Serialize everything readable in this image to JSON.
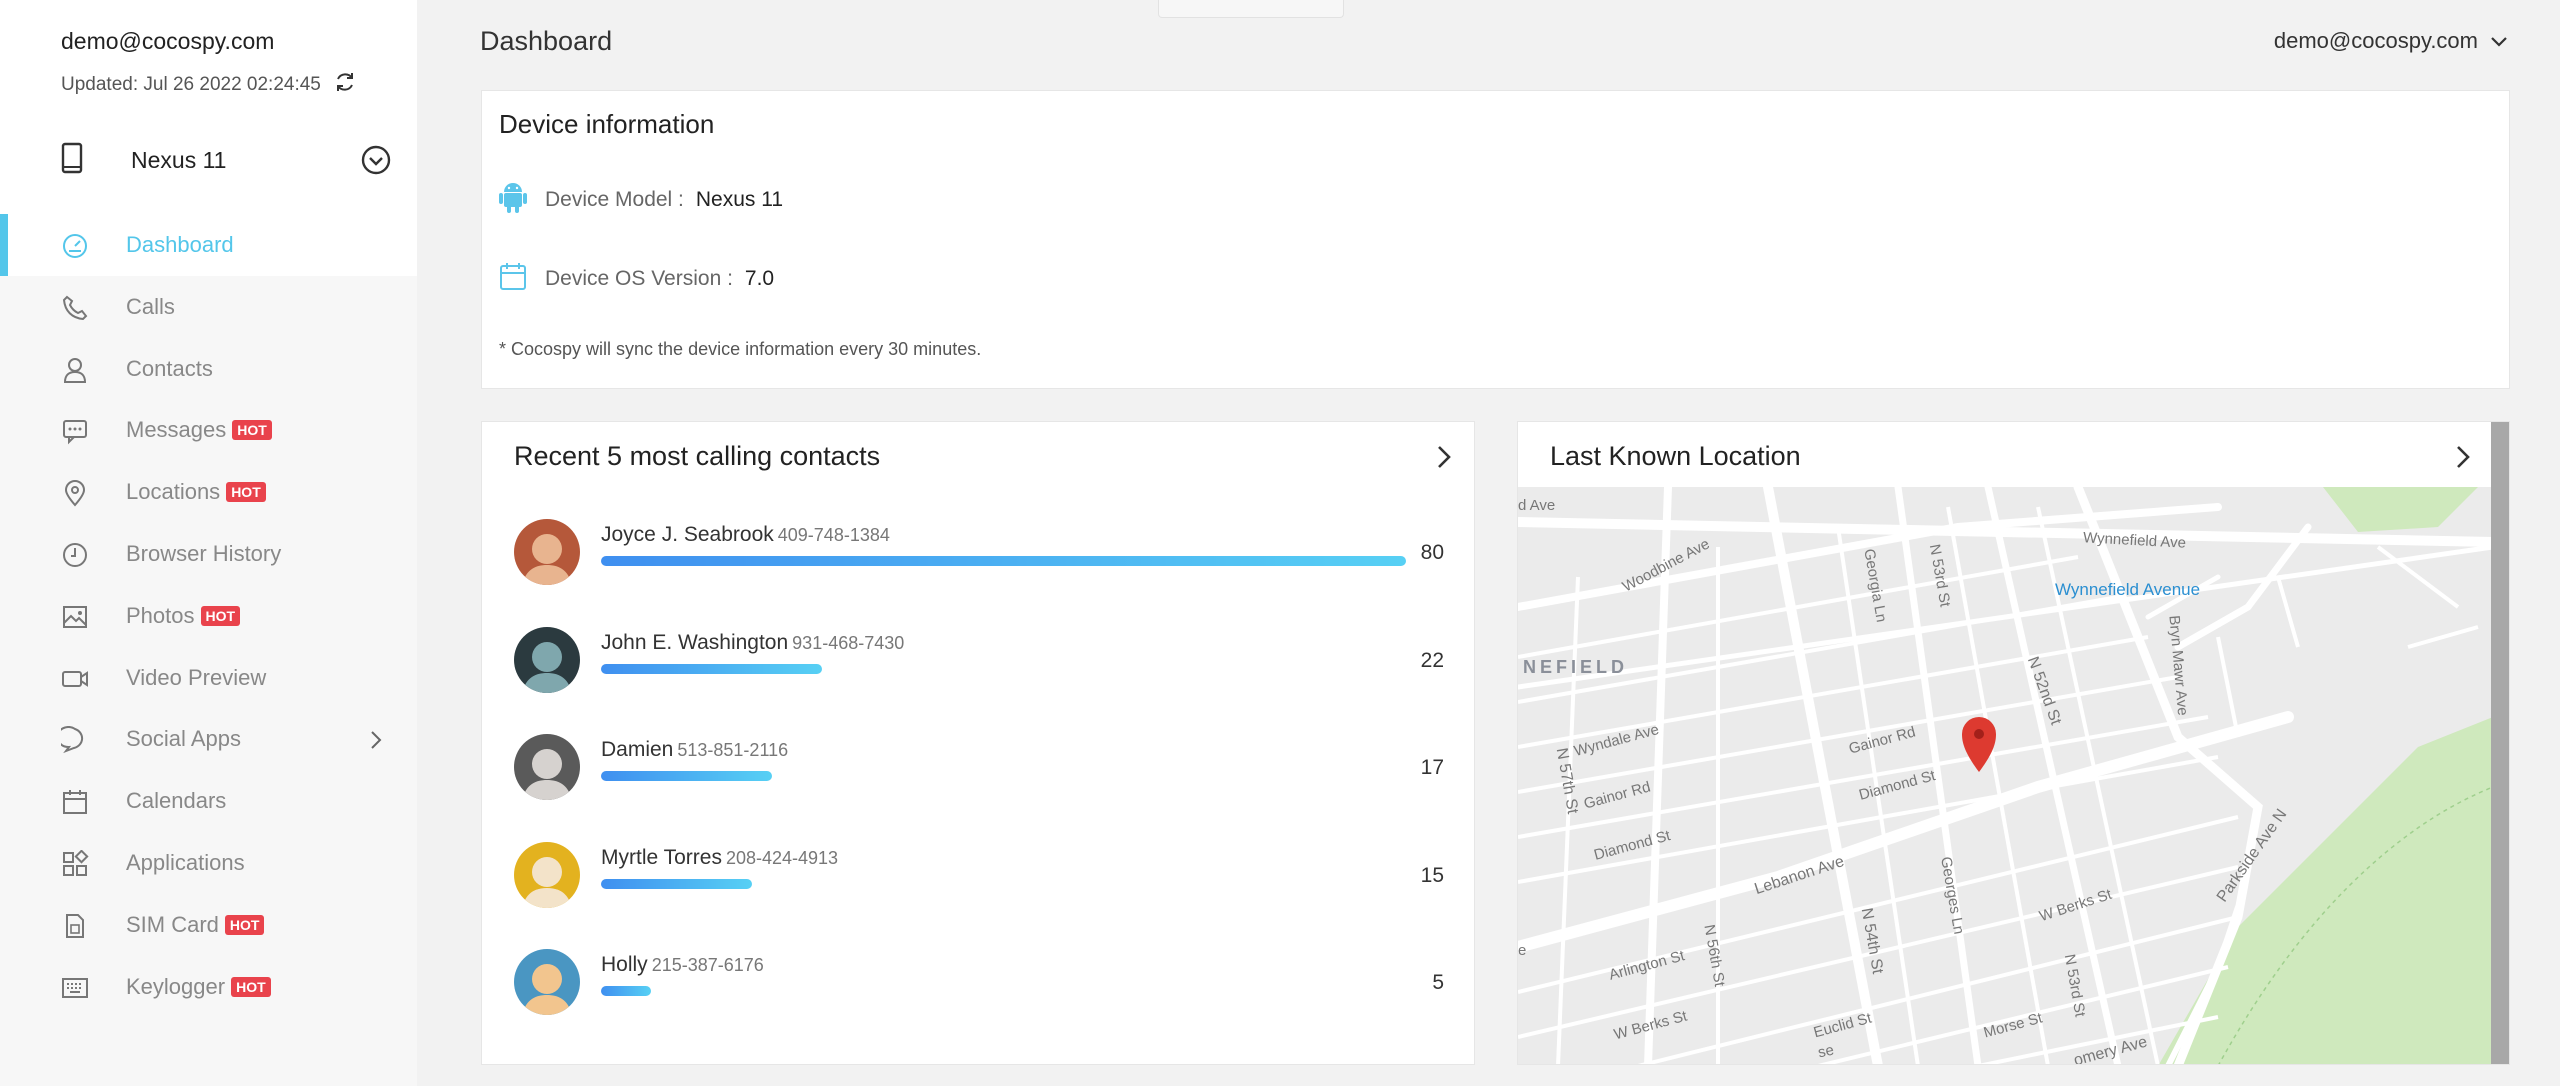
{
  "account": {
    "email": "demo@cocospy.com",
    "updated": "Updated: Jul 26 2022 02:24:45"
  },
  "device": {
    "name": "Nexus 11"
  },
  "nav": [
    {
      "label": "Dashboard",
      "icon": "dashboard-icon",
      "active": true
    },
    {
      "label": "Calls",
      "icon": "phone-icon"
    },
    {
      "label": "Contacts",
      "icon": "person-icon"
    },
    {
      "label": "Messages",
      "icon": "chat-icon",
      "hot": "HOT"
    },
    {
      "label": "Locations",
      "icon": "location-pin-icon",
      "hot": "HOT"
    },
    {
      "label": "Browser History",
      "icon": "clock-icon"
    },
    {
      "label": "Photos",
      "icon": "image-icon",
      "hot": "HOT"
    },
    {
      "label": "Video Preview",
      "icon": "video-icon"
    },
    {
      "label": "Social Apps",
      "icon": "speech-bubble-icon"
    },
    {
      "label": "Calendars",
      "icon": "calendar-icon"
    },
    {
      "label": "Applications",
      "icon": "apps-grid-icon"
    },
    {
      "label": "SIM Card",
      "icon": "sim-card-icon",
      "hot": "HOT"
    },
    {
      "label": "Keylogger",
      "icon": "keyboard-icon",
      "hot": "HOT"
    }
  ],
  "header": {
    "title": "Dashboard",
    "user_email": "demo@cocospy.com"
  },
  "device_info": {
    "title": "Device information",
    "model_label": "Device Model :",
    "model_value": "Nexus 11",
    "os_label": "Device OS Version :",
    "os_value": "7.0",
    "note": "* Cocospy will sync the device information every 30 minutes."
  },
  "contacts": {
    "title": "Recent 5 most calling contacts",
    "max": 80,
    "items": [
      {
        "name": "Joyce J. Seabrook",
        "phone": "409-748-1384",
        "count": 80,
        "colors": [
          "#b5583a",
          "#e8b48f"
        ]
      },
      {
        "name": "John E. Washington",
        "phone": "931-468-7430",
        "count": 22,
        "colors": [
          "#2b3a3f",
          "#7fa7ad"
        ]
      },
      {
        "name": "Damien",
        "phone": "513-851-2116",
        "count": 17,
        "colors": [
          "#5a5a5a",
          "#d6d2cf"
        ]
      },
      {
        "name": "Myrtle Torres",
        "phone": "208-424-4913",
        "count": 15,
        "colors": [
          "#e3b21f",
          "#f3e3c9"
        ]
      },
      {
        "name": "Holly",
        "phone": "215-387-6176",
        "count": 5,
        "colors": [
          "#4a96c2",
          "#f2c58e"
        ]
      }
    ]
  },
  "location": {
    "title": "Last Known Location",
    "labels": {
      "wynnefield_ave": "Wynnefield Ave",
      "woodbine": "Woodbine Ave",
      "d_ave": "d Ave",
      "wynnefield_avenue": "Wynnefield Avenue",
      "nefield": "NEFIELD",
      "georgia": "Georgia Ln",
      "n53rd": "N 53rd St",
      "n52nd": "N 52nd St",
      "bryn": "Bryn Mawr Ave",
      "wyndale": "Wyndale Ave",
      "gainor": "Gainor Rd",
      "gainor2": "Gainor Rd",
      "diamond": "Diamond St",
      "diamond2": "Diamond St",
      "n57th": "N 57th St",
      "lebanon": "Lebanon Ave",
      "n54th": "N 54th St",
      "georges": "Georges Ln",
      "wberks": "W Berks St",
      "wberks2": "W Berks St",
      "arlington": "Arlington St",
      "n56th": "N 56th St",
      "euclid": "Euclid St",
      "morse": "Morse St",
      "n53rd2": "N 53rd St",
      "parkside": "Parkside Ave N",
      "e": "e",
      "montgomery": "omery Ave",
      "dse": "se"
    }
  }
}
